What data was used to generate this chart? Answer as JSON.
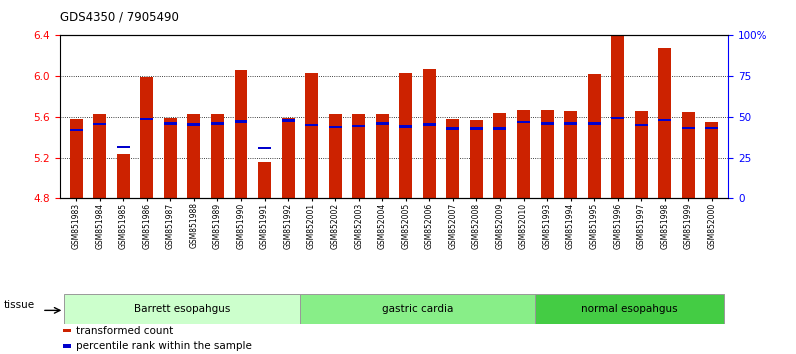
{
  "title": "GDS4350 / 7905490",
  "ylim_left": [
    4.8,
    6.4
  ],
  "ylim_right": [
    0,
    100
  ],
  "yticks_left": [
    4.8,
    5.2,
    5.6,
    6.0,
    6.4
  ],
  "yticks_right": [
    0,
    25,
    50,
    75,
    100
  ],
  "ytick_labels_right": [
    "0",
    "25",
    "50",
    "75",
    "100%"
  ],
  "bar_color": "#cc2200",
  "percentile_color": "#0000cc",
  "bar_bottom": 4.8,
  "samples": [
    {
      "name": "GSM851983",
      "value": 5.575,
      "percentile": 5.47,
      "group": "Barrett esopahgus"
    },
    {
      "name": "GSM851984",
      "value": 5.63,
      "percentile": 5.53,
      "group": "Barrett esopahgus"
    },
    {
      "name": "GSM851985",
      "value": 5.23,
      "percentile": 5.3,
      "group": "Barrett esopahgus"
    },
    {
      "name": "GSM851986",
      "value": 5.995,
      "percentile": 5.575,
      "group": "Barrett esopahgus"
    },
    {
      "name": "GSM851987",
      "value": 5.59,
      "percentile": 5.535,
      "group": "Barrett esopahgus"
    },
    {
      "name": "GSM851988",
      "value": 5.63,
      "percentile": 5.525,
      "group": "Barrett esopahgus"
    },
    {
      "name": "GSM851989",
      "value": 5.63,
      "percentile": 5.535,
      "group": "Barrett esopahgus"
    },
    {
      "name": "GSM851990",
      "value": 6.06,
      "percentile": 5.555,
      "group": "Barrett esopahgus"
    },
    {
      "name": "GSM851991",
      "value": 5.155,
      "percentile": 5.295,
      "group": "Barrett esopahgus"
    },
    {
      "name": "GSM851992",
      "value": 5.59,
      "percentile": 5.565,
      "group": "Barrett esopahgus"
    },
    {
      "name": "GSM852001",
      "value": 6.03,
      "percentile": 5.52,
      "group": "gastric cardia"
    },
    {
      "name": "GSM852002",
      "value": 5.625,
      "percentile": 5.5,
      "group": "gastric cardia"
    },
    {
      "name": "GSM852003",
      "value": 5.625,
      "percentile": 5.51,
      "group": "gastric cardia"
    },
    {
      "name": "GSM852004",
      "value": 5.63,
      "percentile": 5.535,
      "group": "gastric cardia"
    },
    {
      "name": "GSM852005",
      "value": 6.03,
      "percentile": 5.505,
      "group": "gastric cardia"
    },
    {
      "name": "GSM852006",
      "value": 6.07,
      "percentile": 5.525,
      "group": "gastric cardia"
    },
    {
      "name": "GSM852007",
      "value": 5.575,
      "percentile": 5.485,
      "group": "gastric cardia"
    },
    {
      "name": "GSM852008",
      "value": 5.57,
      "percentile": 5.485,
      "group": "gastric cardia"
    },
    {
      "name": "GSM852009",
      "value": 5.64,
      "percentile": 5.485,
      "group": "gastric cardia"
    },
    {
      "name": "GSM852010",
      "value": 5.67,
      "percentile": 5.55,
      "group": "gastric cardia"
    },
    {
      "name": "GSM851993",
      "value": 5.665,
      "percentile": 5.535,
      "group": "normal esopahgus"
    },
    {
      "name": "GSM851994",
      "value": 5.655,
      "percentile": 5.535,
      "group": "normal esopahgus"
    },
    {
      "name": "GSM851995",
      "value": 6.02,
      "percentile": 5.535,
      "group": "normal esopahgus"
    },
    {
      "name": "GSM851996",
      "value": 6.4,
      "percentile": 5.59,
      "group": "normal esopahgus"
    },
    {
      "name": "GSM851997",
      "value": 5.655,
      "percentile": 5.52,
      "group": "normal esopahgus"
    },
    {
      "name": "GSM851998",
      "value": 6.28,
      "percentile": 5.57,
      "group": "normal esopahgus"
    },
    {
      "name": "GSM851999",
      "value": 5.65,
      "percentile": 5.49,
      "group": "normal esopahgus"
    },
    {
      "name": "GSM852000",
      "value": 5.55,
      "percentile": 5.49,
      "group": "normal esopahgus"
    }
  ],
  "groups": [
    {
      "name": "Barrett esopahgus",
      "color": "#ccffcc",
      "start": 0,
      "end": 10
    },
    {
      "name": "gastric cardia",
      "color": "#88ee88",
      "start": 10,
      "end": 20
    },
    {
      "name": "normal esopahgus",
      "color": "#44cc44",
      "start": 20,
      "end": 28
    }
  ],
  "tissue_label": "tissue",
  "legend_items": [
    {
      "label": "transformed count",
      "color": "#cc2200"
    },
    {
      "label": "percentile rank within the sample",
      "color": "#0000cc"
    }
  ]
}
